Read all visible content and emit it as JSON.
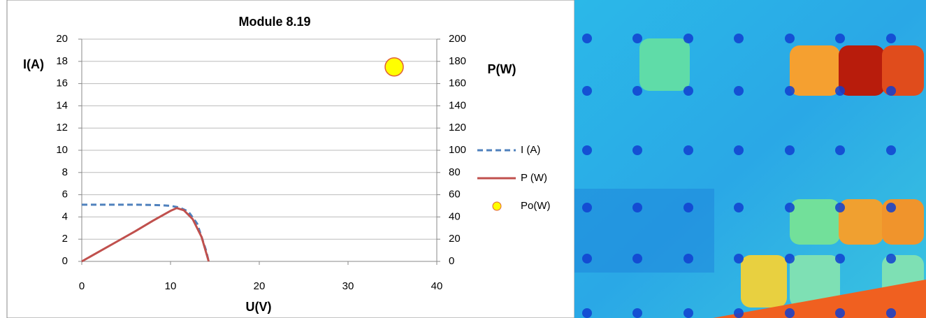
{
  "chart_data": {
    "type": "line",
    "title": "Module 8.19",
    "x_label": "U(V)",
    "y_label": "I(A)",
    "y2_label": "P(W)",
    "xlim": [
      0,
      40
    ],
    "xticks": [
      0,
      10,
      20,
      30,
      40
    ],
    "ylim": [
      0,
      20
    ],
    "yticks": [
      0,
      2,
      4,
      6,
      8,
      10,
      12,
      14,
      16,
      18,
      20
    ],
    "y2lim": [
      0,
      200
    ],
    "y2ticks": [
      0,
      20,
      40,
      60,
      80,
      100,
      120,
      140,
      160,
      180,
      200
    ],
    "grid": true,
    "series": [
      {
        "name": "I (A)",
        "color": "#4f81bd",
        "dash": true,
        "x": [
          0,
          2,
          4,
          6,
          8,
          9,
          10,
          11,
          12,
          13,
          14,
          14.3
        ],
        "values": [
          5.1,
          5.1,
          5.1,
          5.1,
          5.08,
          5.05,
          5.0,
          4.85,
          4.5,
          3.4,
          1.0,
          0
        ]
      },
      {
        "name": "P (W)",
        "color": "#c0504d",
        "axis": "y2",
        "x": [
          0,
          2,
          4,
          6,
          8,
          9,
          10,
          10.7,
          11.5,
          12.5,
          13.5,
          14.3
        ],
        "values": [
          0,
          9,
          18,
          27,
          36.5,
          41,
          45.5,
          48,
          46,
          38,
          22,
          0
        ]
      },
      {
        "name": "Po(W)",
        "color": "#ffff00",
        "type": "scatter",
        "axis": "y2",
        "x": [
          35.2
        ],
        "values": [
          175
        ]
      }
    ]
  }
}
